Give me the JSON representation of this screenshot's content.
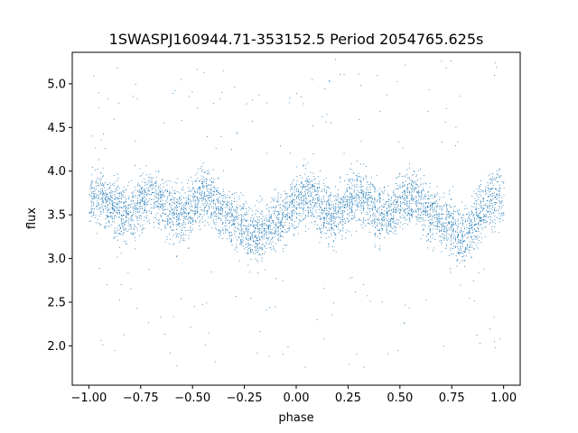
{
  "chart_data": {
    "type": "scatter",
    "title": "1SWASPJ160944.71-353152.5 Period 2054765.625s",
    "xlabel": "phase",
    "ylabel": "flux",
    "xlim": [
      -1.08,
      1.08
    ],
    "ylim": [
      1.55,
      5.36
    ],
    "xticks": [
      -1.0,
      -0.75,
      -0.5,
      -0.25,
      0.0,
      0.25,
      0.5,
      0.75,
      1.0
    ],
    "xtick_labels": [
      "−1.00",
      "−0.75",
      "−0.50",
      "−0.25",
      "0.00",
      "0.25",
      "0.50",
      "0.75",
      "1.00"
    ],
    "yticks": [
      2.0,
      2.5,
      3.0,
      3.5,
      4.0,
      4.5,
      5.0
    ],
    "ytick_labels": [
      "2.0",
      "2.5",
      "3.0",
      "3.5",
      "4.0",
      "4.5",
      "5.0"
    ],
    "grid": false,
    "marker_color": "#1f77b4",
    "series": [
      {
        "x_range": [
          -1.0,
          1.0
        ],
        "mean_flux": 3.5,
        "typical_range": [
          2.9,
          4.2
        ],
        "extreme_range": [
          1.75,
          5.3
        ],
        "brighter_phases": [
          -0.95,
          -0.7,
          -0.45,
          0.05,
          0.3,
          0.55,
          0.95
        ],
        "fainter_phases": [
          -0.2,
          0.8
        ]
      }
    ]
  }
}
